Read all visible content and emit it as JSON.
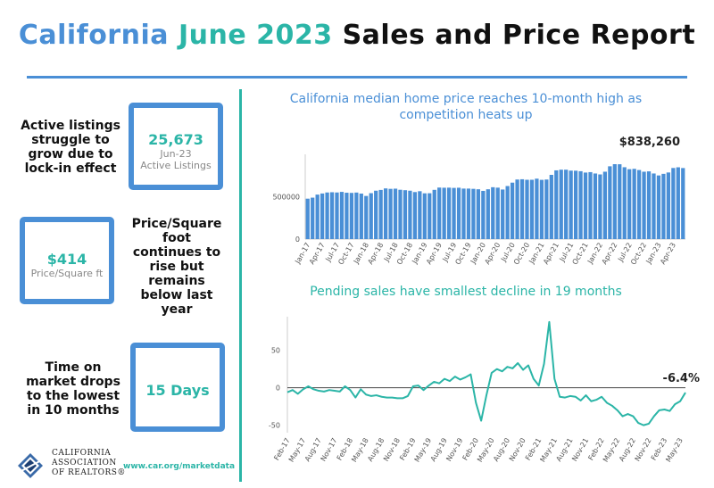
{
  "title": {
    "part1": "California",
    "part2": "June 2023",
    "part3": "Sales and Price Report"
  },
  "left": {
    "block1": {
      "text": [
        "Active listings",
        "struggle to",
        "grow due to",
        "lock-in effect"
      ],
      "value": "25,673",
      "sub": [
        "Jun-23",
        "Active Listings"
      ]
    },
    "block2": {
      "text": [
        "Price/Square",
        "foot",
        "continues to",
        "rise but",
        "remains",
        "below last",
        "year"
      ],
      "value": "$414",
      "sub": [
        "Price/Square ft"
      ]
    },
    "block3": {
      "text": [
        "Time on",
        "market drops",
        "to the lowest",
        "in 10 months"
      ],
      "value": "15 Days"
    }
  },
  "footer": {
    "link": "www.car.org/marketdata",
    "logo_lines": [
      "CALIFORNIA",
      "ASSOCIATION",
      "OF REALTORS®"
    ]
  },
  "colors": {
    "blue": "#4a8fd6",
    "teal": "#2bb5a7",
    "bar": "#4a8fd6",
    "line": "#2bb5a7"
  },
  "chart_data": [
    {
      "type": "bar",
      "title": [
        "California median home price reaches 10-month high as",
        "competition heats up"
      ],
      "annotation": "$838,260",
      "ylim": [
        0,
        1000000
      ],
      "yticks": [
        0,
        500000
      ],
      "ytick_labels": [
        "0",
        "500000"
      ],
      "categories": [
        "Jan-17",
        "Feb-17",
        "Mar-17",
        "Apr-17",
        "May-17",
        "Jun-17",
        "Jul-17",
        "Aug-17",
        "Sep-17",
        "Oct-17",
        "Nov-17",
        "Dec-17",
        "Jan-18",
        "Feb-18",
        "Mar-18",
        "Apr-18",
        "May-18",
        "Jun-18",
        "Jul-18",
        "Aug-18",
        "Sep-18",
        "Oct-18",
        "Nov-18",
        "Dec-18",
        "Jan-19",
        "Feb-19",
        "Mar-19",
        "Apr-19",
        "May-19",
        "Jun-19",
        "Jul-19",
        "Aug-19",
        "Sep-19",
        "Oct-19",
        "Nov-19",
        "Dec-19",
        "Jan-20",
        "Feb-20",
        "Mar-20",
        "Apr-20",
        "May-20",
        "Jun-20",
        "Jul-20",
        "Aug-20",
        "Sep-20",
        "Oct-20",
        "Nov-20",
        "Dec-20",
        "Jan-21",
        "Feb-21",
        "Mar-21",
        "Apr-21",
        "May-21",
        "Jun-21",
        "Jul-21",
        "Aug-21",
        "Sep-21",
        "Oct-21",
        "Nov-21",
        "Dec-21",
        "Jan-22",
        "Feb-22",
        "Mar-22",
        "Apr-22",
        "May-22",
        "Jun-22",
        "Jul-22",
        "Aug-22",
        "Sep-22",
        "Oct-22",
        "Nov-22",
        "Dec-22",
        "Jan-23",
        "Feb-23",
        "Mar-23",
        "Apr-23",
        "May-23",
        "Jun-23"
      ],
      "xtick_labels": [
        "Jan-17",
        "Apr-17",
        "Jul-17",
        "Oct-17",
        "Jan-18",
        "Apr-18",
        "Jul-18",
        "Oct-18",
        "Jan-19",
        "Apr-19",
        "Jul-19",
        "Oct-19",
        "Jan-20",
        "Apr-20",
        "Jul-20",
        "Oct-20",
        "Jan-21",
        "Apr-21",
        "Jul-21",
        "Oct-21",
        "Jan-22",
        "Apr-22",
        "Jul-22",
        "Oct-22",
        "Jan-23",
        "Apr-23"
      ],
      "values": [
        477000,
        489000,
        525000,
        538000,
        550000,
        553000,
        550000,
        557000,
        547000,
        545000,
        549000,
        537000,
        509000,
        542000,
        571000,
        580000,
        598000,
        593000,
        595000,
        582000,
        577000,
        571000,
        555000,
        565000,
        540000,
        541000,
        581000,
        608000,
        606000,
        607000,
        604000,
        606000,
        596000,
        596000,
        593000,
        588000,
        569000,
        588000,
        612000,
        607000,
        585000,
        626000,
        666000,
        703000,
        706000,
        700000,
        700000,
        713000,
        699000,
        703000,
        758000,
        811000,
        819000,
        819000,
        808000,
        807000,
        801000,
        785000,
        790000,
        774000,
        763000,
        795000,
        859000,
        884000,
        883000,
        848000,
        825000,
        829000,
        815000,
        795000,
        799000,
        774000,
        751000,
        770000,
        786000,
        839000,
        847000,
        838260
      ]
    },
    {
      "type": "line",
      "title": "Pending sales have smallest decline in 19 months",
      "annotation": "-6.4%",
      "ylim": [
        -60,
        95
      ],
      "yticks": [
        -50,
        0,
        50
      ],
      "ytick_labels": [
        "-50",
        "0",
        "50"
      ],
      "categories": [
        "Feb-17",
        "Mar-17",
        "Apr-17",
        "May-17",
        "Jun-17",
        "Jul-17",
        "Aug-17",
        "Sep-17",
        "Oct-17",
        "Nov-17",
        "Dec-17",
        "Jan-18",
        "Feb-18",
        "Mar-18",
        "Apr-18",
        "May-18",
        "Jun-18",
        "Jul-18",
        "Aug-18",
        "Sep-18",
        "Oct-18",
        "Nov-18",
        "Dec-18",
        "Jan-19",
        "Feb-19",
        "Mar-19",
        "Apr-19",
        "May-19",
        "Jun-19",
        "Jul-19",
        "Aug-19",
        "Sep-19",
        "Oct-19",
        "Nov-19",
        "Dec-19",
        "Jan-20",
        "Feb-20",
        "Mar-20",
        "Apr-20",
        "May-20",
        "Jun-20",
        "Jul-20",
        "Aug-20",
        "Sep-20",
        "Oct-20",
        "Nov-20",
        "Dec-20",
        "Jan-21",
        "Feb-21",
        "Mar-21",
        "Apr-21",
        "May-21",
        "Jun-21",
        "Jul-21",
        "Aug-21",
        "Sep-21",
        "Oct-21",
        "Nov-21",
        "Dec-21",
        "Jan-22",
        "Feb-22",
        "Mar-22",
        "Apr-22",
        "May-22",
        "Jun-22",
        "Jul-22",
        "Aug-22",
        "Sep-22",
        "Oct-22",
        "Nov-22",
        "Dec-22",
        "Jan-23",
        "Feb-23",
        "Mar-23",
        "Apr-23",
        "May-23",
        "Jun-23"
      ],
      "xtick_labels": [
        "Feb-17",
        "May-17",
        "Aug-17",
        "Nov-17",
        "Feb-18",
        "May-18",
        "Aug-18",
        "Nov-18",
        "Feb-19",
        "May-19",
        "Aug-19",
        "Nov-19",
        "Feb-20",
        "May-20",
        "Aug-20",
        "Nov-20",
        "Feb-21",
        "May-21",
        "Aug-21",
        "Nov-21",
        "Feb-22",
        "May-22",
        "Aug-22",
        "Nov-22",
        "Feb-23",
        "May-23"
      ],
      "values": [
        -6,
        -3,
        -8,
        -2,
        2,
        -2,
        -4,
        -5,
        -3,
        -4,
        -5,
        2,
        -3,
        -13,
        -2,
        -9,
        -11,
        -10,
        -12,
        -13,
        -13,
        -14,
        -14,
        -11,
        2,
        3,
        -3,
        3,
        8,
        6,
        12,
        9,
        15,
        11,
        14,
        18,
        -20,
        -44,
        -10,
        20,
        25,
        22,
        28,
        26,
        33,
        24,
        30,
        12,
        3,
        32,
        88,
        12,
        -12,
        -13,
        -11,
        -12,
        -17,
        -10,
        -18,
        -16,
        -12,
        -20,
        -24,
        -30,
        -38,
        -35,
        -38,
        -47,
        -50,
        -48,
        -38,
        -30,
        -29,
        -31,
        -22,
        -18,
        -6.4
      ]
    }
  ]
}
